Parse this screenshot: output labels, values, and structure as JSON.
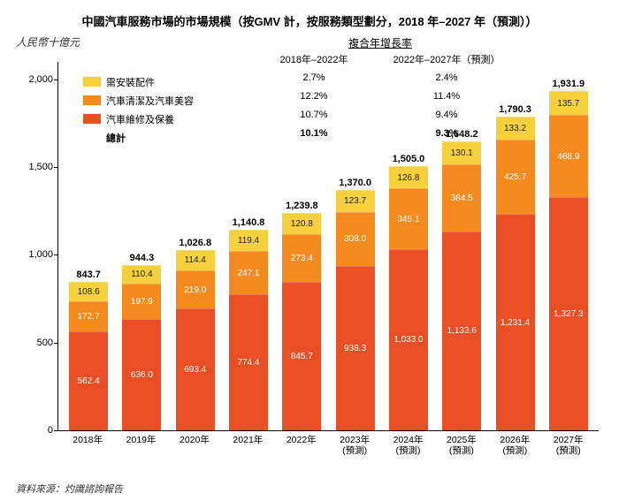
{
  "title": "中國汽車服務市場的市場規模（按GMV 計，按服務類型劃分，2018 年–2027 年（預測））",
  "yaxis_label": "人民幣十億元",
  "source": "資料來源：灼識諮詢報告",
  "colors": {
    "segment_top": "#f7d13d",
    "segment_mid": "#f58b1f",
    "segment_bottom": "#e94e24",
    "segment_top_text": "dark"
  },
  "font": {
    "title_size": 13,
    "label_size": 11
  },
  "legend": {
    "items": [
      {
        "label": "需安裝配件",
        "color_key": "segment_top"
      },
      {
        "label": "汽車清潔及汽車美容",
        "color_key": "segment_mid"
      },
      {
        "label": "汽車維修及保養",
        "color_key": "segment_bottom"
      }
    ],
    "total_label": "總計"
  },
  "cagr": {
    "title": "複合年增長率",
    "col1_label": "2018年–2022年",
    "col2_label": "2022年–2027年（預測）",
    "rows": [
      {
        "v1": "2.7%",
        "v2": "2.4%"
      },
      {
        "v1": "12.2%",
        "v2": "11.4%"
      },
      {
        "v1": "10.7%",
        "v2": "9.4%"
      }
    ],
    "total": {
      "v1": "10.1%",
      "v2": "9.3%"
    }
  },
  "chart": {
    "type": "stacked-bar",
    "ymax": 2100,
    "yticks": [
      0,
      500,
      1000,
      1500,
      2000
    ],
    "categories": [
      "2018年",
      "2019年",
      "2020年",
      "2021年",
      "2022年",
      "2023年\n(預測)",
      "2024年\n(預測)",
      "2025年\n(預測)",
      "2026年\n(預測)",
      "2027年\n(預測)"
    ],
    "series_order": [
      "bottom",
      "mid",
      "top"
    ],
    "data": [
      {
        "total": "843.7",
        "bottom": 562.4,
        "mid": 172.7,
        "top": 108.6
      },
      {
        "total": "944.3",
        "bottom": 636.0,
        "mid": 197.9,
        "top": 110.4
      },
      {
        "total": "1,026.8",
        "bottom": 693.4,
        "mid": 219.0,
        "top": 114.4
      },
      {
        "total": "1,140.8",
        "bottom": 774.4,
        "mid": 247.1,
        "top": 119.4
      },
      {
        "total": "1,239.8",
        "bottom": 845.7,
        "mid": 273.4,
        "top": 120.8
      },
      {
        "total": "1,370.0",
        "bottom": 938.3,
        "mid": 308.0,
        "top": 123.7
      },
      {
        "total": "1,505.0",
        "bottom": 1033.0,
        "mid": 345.1,
        "top": 126.8
      },
      {
        "total": "1,648.2",
        "bottom": 1133.6,
        "mid": 384.5,
        "top": 130.1
      },
      {
        "total": "1,790.3",
        "bottom": 1231.4,
        "mid": 425.7,
        "top": 133.2
      },
      {
        "total": "1,931.9",
        "bottom": 1327.3,
        "mid": 468.9,
        "top": 135.7
      }
    ],
    "value_labels": {
      "bottom": [
        "562.4",
        "636.0",
        "693.4",
        "774.4",
        "845.7",
        "938.3",
        "1,033.0",
        "1,133.6",
        "1,231.4",
        "1,327.3"
      ],
      "mid": [
        "172.7",
        "197.9",
        "219.0",
        "247.1",
        "273.4",
        "308.0",
        "345.1",
        "384.5",
        "425.7",
        "468.9"
      ],
      "top": [
        "108.6",
        "110.4",
        "114.4",
        "119.4",
        "120.8",
        "123.7",
        "126.8",
        "130.1",
        "133.2",
        "135.7"
      ]
    }
  }
}
